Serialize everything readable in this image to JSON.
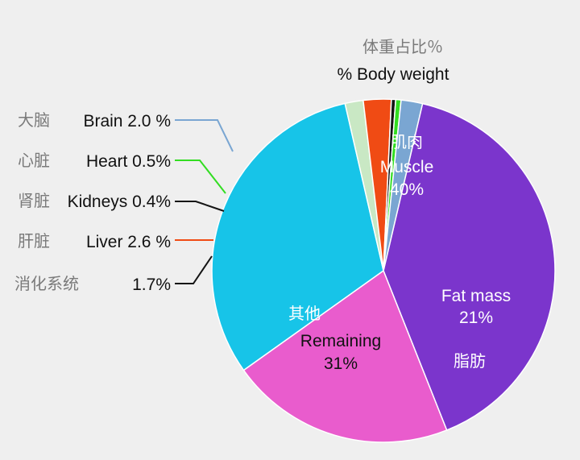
{
  "chart_data": {
    "type": "pie",
    "title_zh": "体重占比％",
    "title": "% Body weight",
    "slices": [
      {
        "label_zh": "肌肉",
        "label": "Muscle",
        "value_text": "40%",
        "value": 40,
        "color": "#7b35cc"
      },
      {
        "label_zh": "脂肪",
        "label": "Fat mass",
        "value_text": "21%",
        "value": 21,
        "color": "#e95ccd"
      },
      {
        "label_zh": "其他",
        "label": "Remaining",
        "value_text": "31%",
        "value": 31,
        "color": "#17c4e8"
      },
      {
        "label_zh": "消化系统",
        "label": "",
        "value_text": "1.7%",
        "value": 1.7,
        "color": "#c9e8c4"
      },
      {
        "label_zh": "肝脏",
        "label": "Liver 2.6 %",
        "value_text": "",
        "value": 2.6,
        "color": "#f04b14"
      },
      {
        "label_zh": "肾脏",
        "label": "Kidneys 0.4%",
        "value_text": "",
        "value": 0.4,
        "color": "#141414"
      },
      {
        "label_zh": "心脏",
        "label": "Heart 0.5%",
        "value_text": "",
        "value": 0.5,
        "color": "#33dd22"
      },
      {
        "label_zh": "大脑",
        "label": "Brain 2.0 %",
        "value_text": "",
        "value": 2.0,
        "color": "#7aa6d2"
      }
    ]
  }
}
